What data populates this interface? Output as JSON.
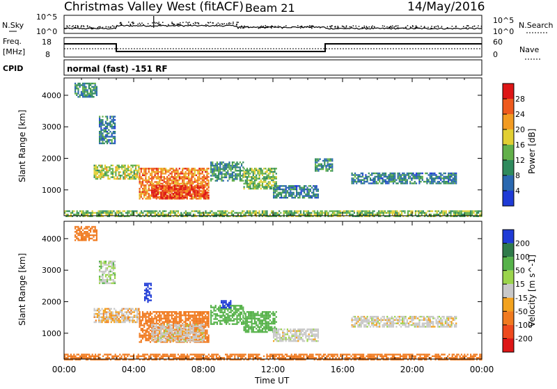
{
  "header": {
    "title": "Christmas Valley West (fitACF)",
    "beam": "Beam 21",
    "date": "14/May/2016"
  },
  "status_panels": {
    "nsky_label": "N.Sky",
    "nsearch_label": "N.Search",
    "freq_label_line1": "Freq.",
    "freq_label_line2": "[MHz]",
    "nave_label": "Nave",
    "cpid_label": "CPID",
    "cpid_value": "normal (fast) -151 RF",
    "noise_left_ticks": [
      "10^5",
      "10^0"
    ],
    "noise_right_ticks": [
      "10^5",
      "10^0"
    ],
    "freq_left_ticks": [
      "18",
      "8"
    ],
    "freq_right_ticks": [
      "60",
      "0"
    ]
  },
  "chart_data": [
    {
      "type": "heatmap",
      "title": "",
      "xlabel": "Time UT",
      "ylabel": "Slant Range [km]",
      "x_ticks": [
        "00:00",
        "04:00",
        "08:00",
        "12:00",
        "16:00",
        "20:00",
        "00:00"
      ],
      "y_ticks": [
        1000,
        2000,
        3000,
        4000
      ],
      "xlim_hours": [
        0,
        24
      ],
      "ylim_km": [
        180,
        4550
      ],
      "colorbar": {
        "label": "Power [dB]",
        "ticks": [
          4,
          8,
          12,
          16,
          20,
          24,
          28
        ],
        "range": [
          0,
          31
        ],
        "colors": [
          "#1f3bd6",
          "#2a68b0",
          "#2f8a5d",
          "#62b04a",
          "#e2cf33",
          "#f29b22",
          "#ee5a1d",
          "#dd1616"
        ]
      },
      "echo_regions": [
        {
          "t_start": 0.6,
          "t_end": 1.9,
          "r_min": 3950,
          "r_max": 4400,
          "value": 10
        },
        {
          "t_start": 2.0,
          "t_end": 2.9,
          "r_min": 2500,
          "r_max": 3350,
          "value": 8
        },
        {
          "t_start": 1.7,
          "t_end": 4.3,
          "r_min": 1350,
          "r_max": 1800,
          "value": 16
        },
        {
          "t_start": 4.3,
          "t_end": 8.3,
          "r_min": 700,
          "r_max": 1700,
          "value": 24
        },
        {
          "t_start": 5.0,
          "t_end": 8.3,
          "r_min": 750,
          "r_max": 1150,
          "value": 28
        },
        {
          "t_start": 8.4,
          "t_end": 10.3,
          "r_min": 1300,
          "r_max": 1900,
          "value": 10
        },
        {
          "t_start": 10.3,
          "t_end": 12.2,
          "r_min": 1050,
          "r_max": 1700,
          "value": 14
        },
        {
          "t_start": 12.0,
          "t_end": 14.6,
          "r_min": 750,
          "r_max": 1150,
          "value": 8
        },
        {
          "t_start": 14.4,
          "t_end": 15.4,
          "r_min": 1600,
          "r_max": 2000,
          "value": 10
        },
        {
          "t_start": 16.5,
          "t_end": 22.5,
          "r_min": 1200,
          "r_max": 1550,
          "value": 8
        },
        {
          "t_start": 0.0,
          "t_end": 24.0,
          "r_min": 180,
          "r_max": 350,
          "value": 14
        }
      ]
    },
    {
      "type": "heatmap",
      "title": "",
      "xlabel": "Time UT",
      "ylabel": "Slant Range [km]",
      "x_ticks": [
        "00:00",
        "04:00",
        "08:00",
        "12:00",
        "16:00",
        "20:00",
        "00:00"
      ],
      "y_ticks": [
        1000,
        2000,
        3000,
        4000
      ],
      "xlim_hours": [
        0,
        24
      ],
      "ylim_km": [
        180,
        4550
      ],
      "colorbar": {
        "label": "Velocity [m s^-1]",
        "ticks": [
          200,
          100,
          50,
          15,
          -15,
          -50,
          -100,
          -200
        ],
        "colors": [
          "#1f3bd6",
          "#2f7a4a",
          "#56b24a",
          "#9bd44c",
          "#c8c8c8",
          "#f2a21f",
          "#f07a1f",
          "#ee4a1d",
          "#dd1616"
        ]
      },
      "echo_regions": [
        {
          "t_start": 0.6,
          "t_end": 1.9,
          "r_min": 3950,
          "r_max": 4400,
          "value": -50
        },
        {
          "t_start": 2.0,
          "t_end": 2.9,
          "r_min": 2600,
          "r_max": 3300,
          "value": 15
        },
        {
          "t_start": 1.7,
          "t_end": 4.3,
          "r_min": 1350,
          "r_max": 1800,
          "value": -15
        },
        {
          "t_start": 4.3,
          "t_end": 8.3,
          "r_min": 700,
          "r_max": 1700,
          "value": -50
        },
        {
          "t_start": 5.0,
          "t_end": 8.0,
          "r_min": 750,
          "r_max": 1300,
          "value": 0
        },
        {
          "t_start": 8.4,
          "t_end": 10.3,
          "r_min": 1300,
          "r_max": 1900,
          "value": 50
        },
        {
          "t_start": 10.3,
          "t_end": 12.2,
          "r_min": 1050,
          "r_max": 1700,
          "value": 50
        },
        {
          "t_start": 12.0,
          "t_end": 14.6,
          "r_min": 750,
          "r_max": 1150,
          "value": 0
        },
        {
          "t_start": 16.5,
          "t_end": 22.5,
          "r_min": 1200,
          "r_max": 1550,
          "value": 0
        },
        {
          "t_start": 0.0,
          "t_end": 24.0,
          "r_min": 180,
          "r_max": 350,
          "value": -50
        },
        {
          "t_start": 4.6,
          "t_end": 5.0,
          "r_min": 2000,
          "r_max": 2600,
          "value": 200
        },
        {
          "t_start": 9.0,
          "t_end": 9.6,
          "r_min": 1800,
          "r_max": 2050,
          "value": 200
        }
      ]
    }
  ]
}
